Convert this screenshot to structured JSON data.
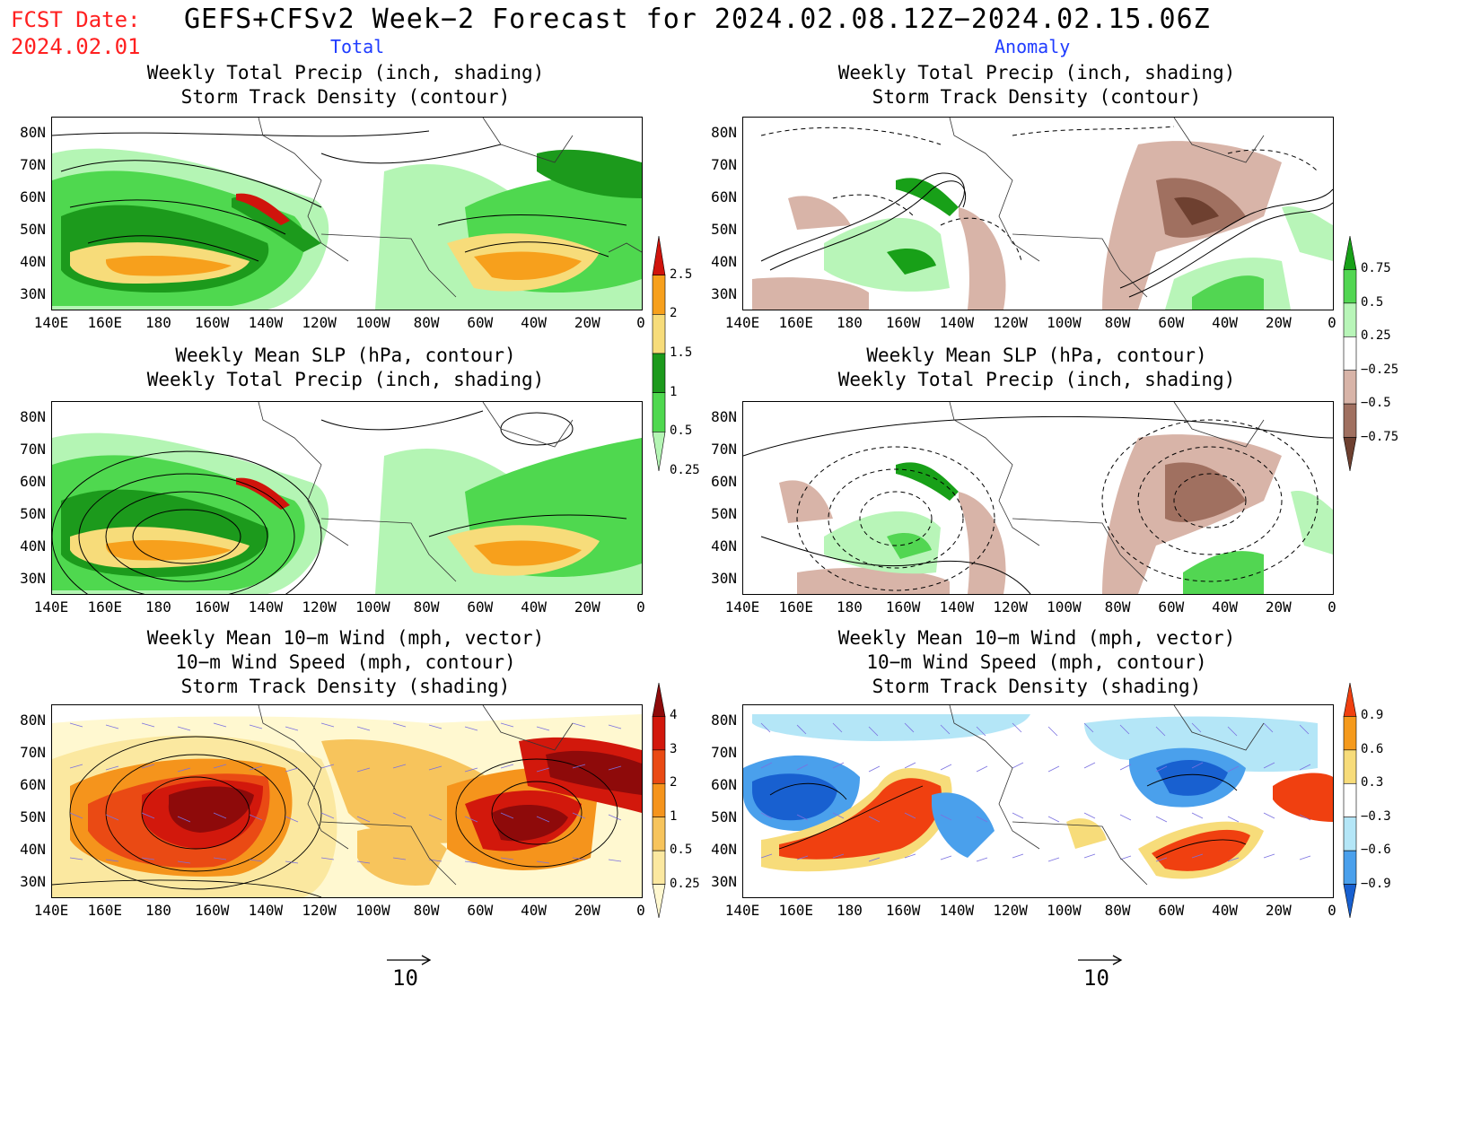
{
  "header": {
    "fcst_label": "FCST Date:",
    "fcst_date": "2024.02.01",
    "title": "GEFS+CFSv2 Week−2 Forecast for 2024.02.08.12Z−2024.02.15.06Z",
    "col_total": "Total",
    "col_anomaly": "Anomaly"
  },
  "panels": {
    "p1": {
      "line1": "Weekly Total Precip (inch, shading)",
      "line2": "Storm Track Density (contour)"
    },
    "p2": {
      "line1": "Weekly Total Precip (inch, shading)",
      "line2": "Storm Track Density (contour)"
    },
    "p3": {
      "line1": "Weekly Mean SLP (hPa, contour)",
      "line2": "Weekly Total Precip (inch, shading)"
    },
    "p4": {
      "line1": "Weekly Mean SLP (hPa, contour)",
      "line2": "Weekly Total Precip (inch, shading)"
    },
    "p5": {
      "line1": "Weekly Mean 10−m Wind (mph, vector)",
      "line2": "10−m Wind Speed (mph, contour)",
      "line3": "Storm Track Density (shading)"
    },
    "p6": {
      "line1": "Weekly Mean 10−m Wind (mph, vector)",
      "line2": "10−m Wind Speed (mph, contour)",
      "line3": "Storm Track Density (shading)"
    }
  },
  "axes": {
    "lat_labels": [
      "80N",
      "70N",
      "60N",
      "50N",
      "40N",
      "30N"
    ],
    "lon_labels": [
      "140E",
      "160E",
      "180",
      "160W",
      "140W",
      "120W",
      "100W",
      "80W",
      "60W",
      "40W",
      "20W",
      "0"
    ]
  },
  "colorbars": {
    "precip_total": {
      "labels": [
        "2.5",
        "2",
        "1.5",
        "1",
        "0.5",
        "0.25"
      ],
      "colors": [
        "#d0140c",
        "#f7a01c",
        "#f7dc7a",
        "#1c9a1c",
        "#4fd84f",
        "#b4f5b4"
      ]
    },
    "precip_anom": {
      "labels": [
        "0.75",
        "0.5",
        "0.25",
        "−0.25",
        "−0.5",
        "−0.75"
      ],
      "colors": [
        "#18a018",
        "#52d652",
        "#b8f5b8",
        "#ffffff",
        "#d8b4a8",
        "#a07060",
        "#6e4030"
      ]
    },
    "storm_total": {
      "labels": [
        "4",
        "3",
        "2",
        "1",
        "0.5",
        "0.25"
      ],
      "colors": [
        "#8e0a0a",
        "#d2180c",
        "#ea4a14",
        "#f5941c",
        "#f7c45c",
        "#fbe8a0",
        "#fff8d0"
      ]
    },
    "storm_anom": {
      "labels": [
        "0.9",
        "0.6",
        "0.3",
        "−0.3",
        "−0.6",
        "−0.9"
      ],
      "colors": [
        "#f04010",
        "#f59a1c",
        "#f7dc7a",
        "#ffffff",
        "#b4e6f7",
        "#4aa0ec",
        "#1860d0"
      ]
    }
  },
  "reference_vector": {
    "value": "10"
  }
}
